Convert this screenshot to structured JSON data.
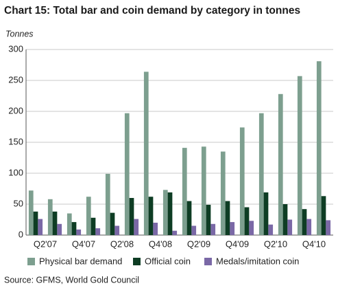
{
  "chart_data": {
    "type": "bar",
    "title": "Chart 15: Total bar and coin demand by category in tonnes",
    "y_label": "Tonnes",
    "source": "Source: GFMS, World Gold Council",
    "categories": [
      null,
      "Q2'07",
      null,
      "Q4'07",
      null,
      "Q2'08",
      null,
      "Q4'08",
      null,
      "Q2'09",
      null,
      "Q4'09",
      null,
      "Q2'10",
      null,
      "Q4'10"
    ],
    "series": [
      {
        "name": "Physical bar demand",
        "color": "#7d9f8f",
        "values": [
          72,
          58,
          35,
          62,
          99,
          197,
          264,
          73,
          141,
          143,
          135,
          174,
          197,
          228,
          257,
          281
        ]
      },
      {
        "name": "Official coin",
        "color": "#0e3d24",
        "values": [
          38,
          38,
          21,
          28,
          36,
          60,
          62,
          69,
          55,
          49,
          55,
          45,
          69,
          50,
          42,
          63
        ]
      },
      {
        "name": "Medals/imitation coin",
        "color": "#7a68a6",
        "values": [
          26,
          18,
          9,
          11,
          15,
          26,
          20,
          7,
          15,
          18,
          21,
          23,
          17,
          25,
          26,
          24
        ]
      }
    ],
    "ylim": [
      0,
      300
    ],
    "yticks": [
      0,
      50,
      100,
      150,
      200,
      250,
      300
    ],
    "grid": true
  }
}
